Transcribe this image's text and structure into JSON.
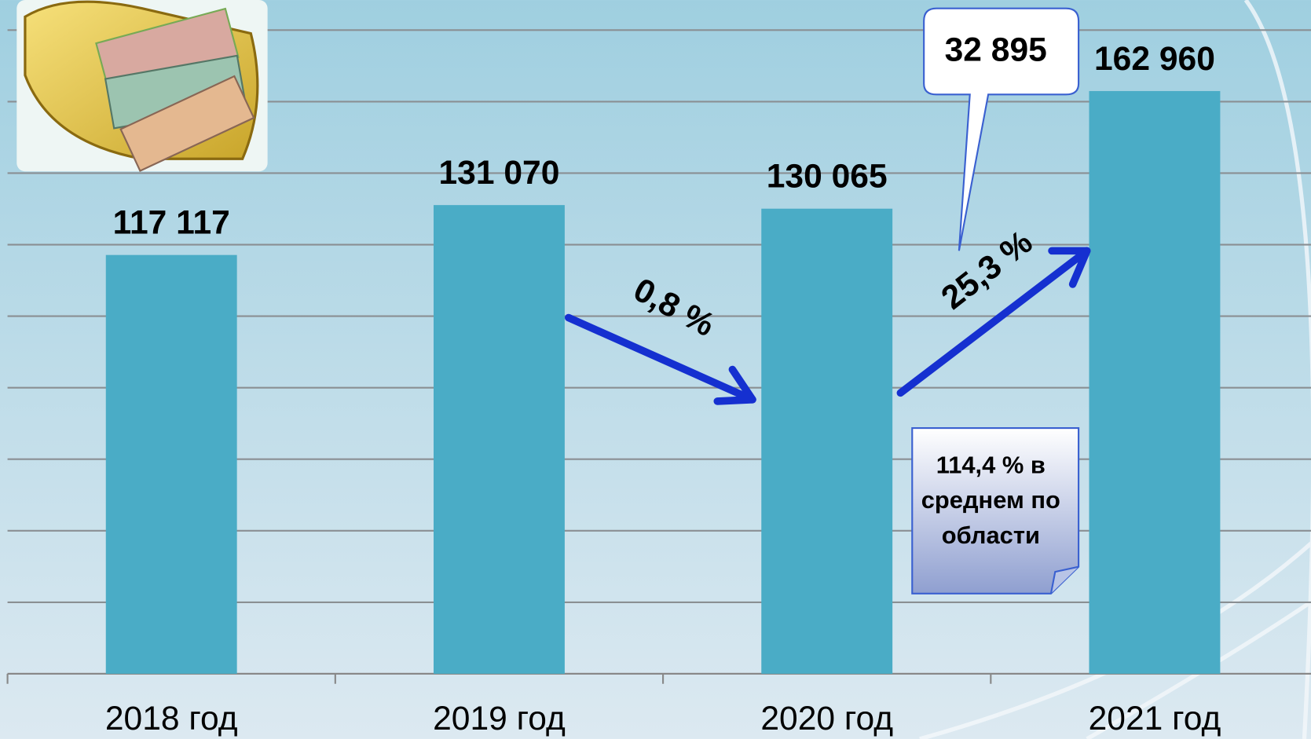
{
  "chart_data": {
    "type": "bar",
    "categories": [
      "2018 год",
      "2019 год",
      "2020 год",
      "2021 год"
    ],
    "values": [
      117117,
      131070,
      130065,
      162960
    ],
    "value_labels": [
      "117 117",
      "131 070",
      "130 065",
      "162 960"
    ],
    "color": "#4aacc6",
    "ylim": [
      0,
      180000
    ],
    "yticks": [
      0,
      20000,
      40000,
      60000,
      80000,
      100000,
      120000,
      140000,
      160000,
      180000
    ],
    "grid": true,
    "annotations": [
      "0,8 %",
      "25,3 %",
      "32 895",
      "114,4 % в среднем по области"
    ]
  }
}
